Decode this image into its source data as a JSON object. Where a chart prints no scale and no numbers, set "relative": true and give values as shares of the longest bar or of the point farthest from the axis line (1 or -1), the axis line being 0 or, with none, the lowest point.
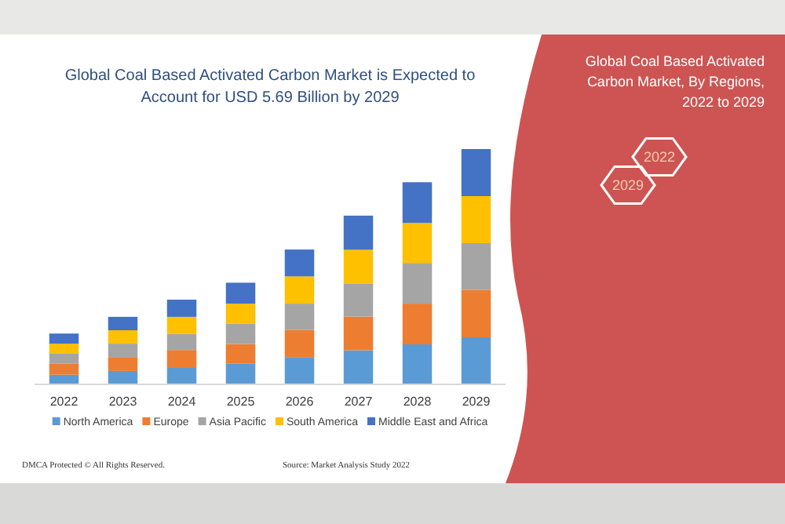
{
  "chart_data": {
    "type": "bar",
    "stacked": true,
    "relative": true,
    "title": "Global Coal Based Activated Carbon Market is Expected to Account for USD 5.69 Billion by 2029",
    "subtitle": "Global Coal Based Activated Carbon Market, By Regions, 2022 to 2029",
    "categories": [
      "2022",
      "2023",
      "2024",
      "2025",
      "2026",
      "2027",
      "2028",
      "2029"
    ],
    "series": [
      {
        "name": "North America",
        "color": "#5b9bd5",
        "values": [
          0.041,
          0.057,
          0.073,
          0.089,
          0.116,
          0.145,
          0.17,
          0.2
        ]
      },
      {
        "name": "Europe",
        "color": "#ed7d31",
        "values": [
          0.048,
          0.059,
          0.073,
          0.082,
          0.116,
          0.143,
          0.173,
          0.202
        ]
      },
      {
        "name": "Asia Pacific",
        "color": "#a5a5a5",
        "values": [
          0.041,
          0.057,
          0.068,
          0.086,
          0.111,
          0.141,
          0.173,
          0.198
        ]
      },
      {
        "name": "South America",
        "color": "#ffc000",
        "values": [
          0.043,
          0.057,
          0.073,
          0.086,
          0.116,
          0.143,
          0.17,
          0.2
        ]
      },
      {
        "name": "Middle East and Africa",
        "color": "#4472c4",
        "values": [
          0.043,
          0.057,
          0.073,
          0.089,
          0.114,
          0.145,
          0.173,
          0.2
        ]
      }
    ],
    "legend": "bottom",
    "annotations": [
      "2022",
      "2029",
      "DMCA Protected © All Rights Reserved.",
      "Source: Market Analysis Study 2022"
    ]
  }
}
